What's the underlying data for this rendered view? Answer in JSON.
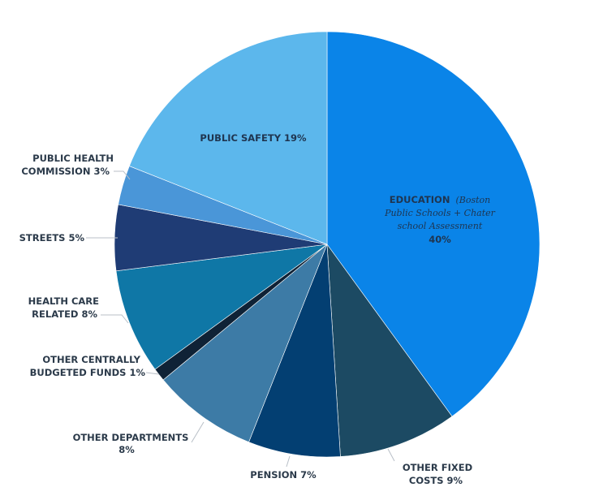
{
  "chart_data": {
    "type": "pie",
    "title": "",
    "start_angle_deg": 0,
    "direction": "clockwise",
    "slices": [
      {
        "name": "EDUCATION",
        "detail": "(Boston Public Schools + Chater school Assessment",
        "value": 40,
        "pct_label": "40%",
        "color": "#0a84e8"
      },
      {
        "name": "OTHER FIXED COSTS",
        "line1": "OTHER FIXED",
        "line2": "COSTS 9%",
        "value": 9,
        "color": "#1c4a63"
      },
      {
        "name": "PENSION",
        "line1": "PENSION 7%",
        "value": 7,
        "color": "#033f72"
      },
      {
        "name": "OTHER DEPARTMENTS",
        "line1": "OTHER DEPARTMENTS",
        "line2": "8%",
        "value": 8,
        "color": "#3d7ba6"
      },
      {
        "name": "OTHER CENTRALLY BUDGETED FUNDS",
        "line1": "OTHER CENTRALLY",
        "line2": "BUDGETED FUNDS 1%",
        "value": 1,
        "color": "#0f2236"
      },
      {
        "name": "HEALTH CARE RELATED",
        "line1": "HEALTH CARE",
        "line2": "RELATED 8%",
        "value": 8,
        "color": "#0f77a6"
      },
      {
        "name": "STREETS",
        "line1": "STREETS 5%",
        "value": 5,
        "color": "#1f3c75"
      },
      {
        "name": "PUBLIC HEALTH COMMISSION",
        "line1": "PUBLIC HEALTH",
        "line2": "COMMISSION 3%",
        "value": 3,
        "color": "#4a96d8"
      },
      {
        "name": "PUBLIC SAFETY",
        "line1": "PUBLIC SAFETY 19%",
        "value": 19,
        "color": "#5cb7ec"
      }
    ],
    "legend": "none",
    "labels": "outside with leader lines; education and public safety labels inside"
  },
  "text": {
    "education_name": "EDUCATION",
    "education_detail_a": "(Boston",
    "education_detail_b": "Public Schools + Chater",
    "education_detail_c": "school Assessment",
    "education_pct": "40%",
    "public_safety": "PUBLIC SAFETY 19%",
    "other_fixed_1": "OTHER FIXED",
    "other_fixed_2": "COSTS 9%",
    "pension": "PENSION 7%",
    "other_depts_1": "OTHER DEPARTMENTS",
    "other_depts_2": "8%",
    "other_central_1": "OTHER CENTRALLY",
    "other_central_2": "BUDGETED FUNDS 1%",
    "health_care_1": "HEALTH CARE",
    "health_care_2": "RELATED 8%",
    "streets": "STREETS 5%",
    "public_health_1": "PUBLIC HEALTH",
    "public_health_2": "COMMISSION 3%"
  }
}
